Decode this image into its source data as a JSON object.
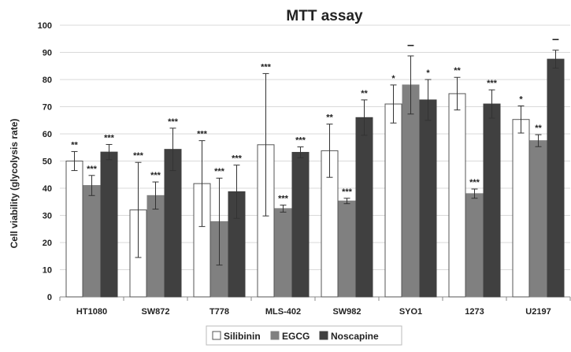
{
  "chart_data": {
    "type": "bar",
    "title": "MTT assay",
    "ylabel": "Cell viability (glycolysis rate)",
    "xlabel": "",
    "ylim": [
      0,
      100
    ],
    "yticks": [
      0,
      10,
      20,
      30,
      40,
      50,
      60,
      70,
      80,
      90,
      100
    ],
    "grid": true,
    "legend_position": "bottom",
    "categories": [
      "HT1080",
      "SW872",
      "T778",
      "MLS-402",
      "SW982",
      "SYO1",
      "1273",
      "U2197"
    ],
    "series": [
      {
        "name": "Silibinin",
        "color": "#ffffff",
        "values": [
          50.0,
          32.0,
          41.7,
          56.0,
          53.8,
          71.0,
          74.8,
          65.3
        ],
        "error": [
          3.5,
          17.5,
          15.8,
          26.2,
          9.8,
          7.0,
          6.0,
          5.0
        ],
        "annotations": [
          "**",
          "***",
          "***",
          "***",
          "**",
          "*",
          "**",
          "*"
        ]
      },
      {
        "name": "EGCG",
        "color": "#808080",
        "values": [
          41.0,
          37.3,
          27.7,
          32.5,
          35.3,
          78.0,
          38.0,
          57.5
        ],
        "error": [
          3.7,
          5.0,
          16.0,
          1.3,
          1.0,
          10.7,
          1.7,
          2.2
        ],
        "annotations": [
          "***",
          "***",
          "***",
          "***",
          "***",
          "–",
          "***",
          "**"
        ]
      },
      {
        "name": "Noscapine",
        "color": "#404040",
        "values": [
          53.3,
          54.3,
          38.7,
          53.2,
          66.0,
          72.5,
          71.0,
          87.5
        ],
        "error": [
          2.8,
          7.8,
          9.8,
          2.0,
          6.5,
          7.5,
          5.2,
          3.3
        ],
        "annotations": [
          "***",
          "***",
          "***",
          "***",
          "**",
          "*",
          "***",
          "–"
        ]
      }
    ]
  }
}
